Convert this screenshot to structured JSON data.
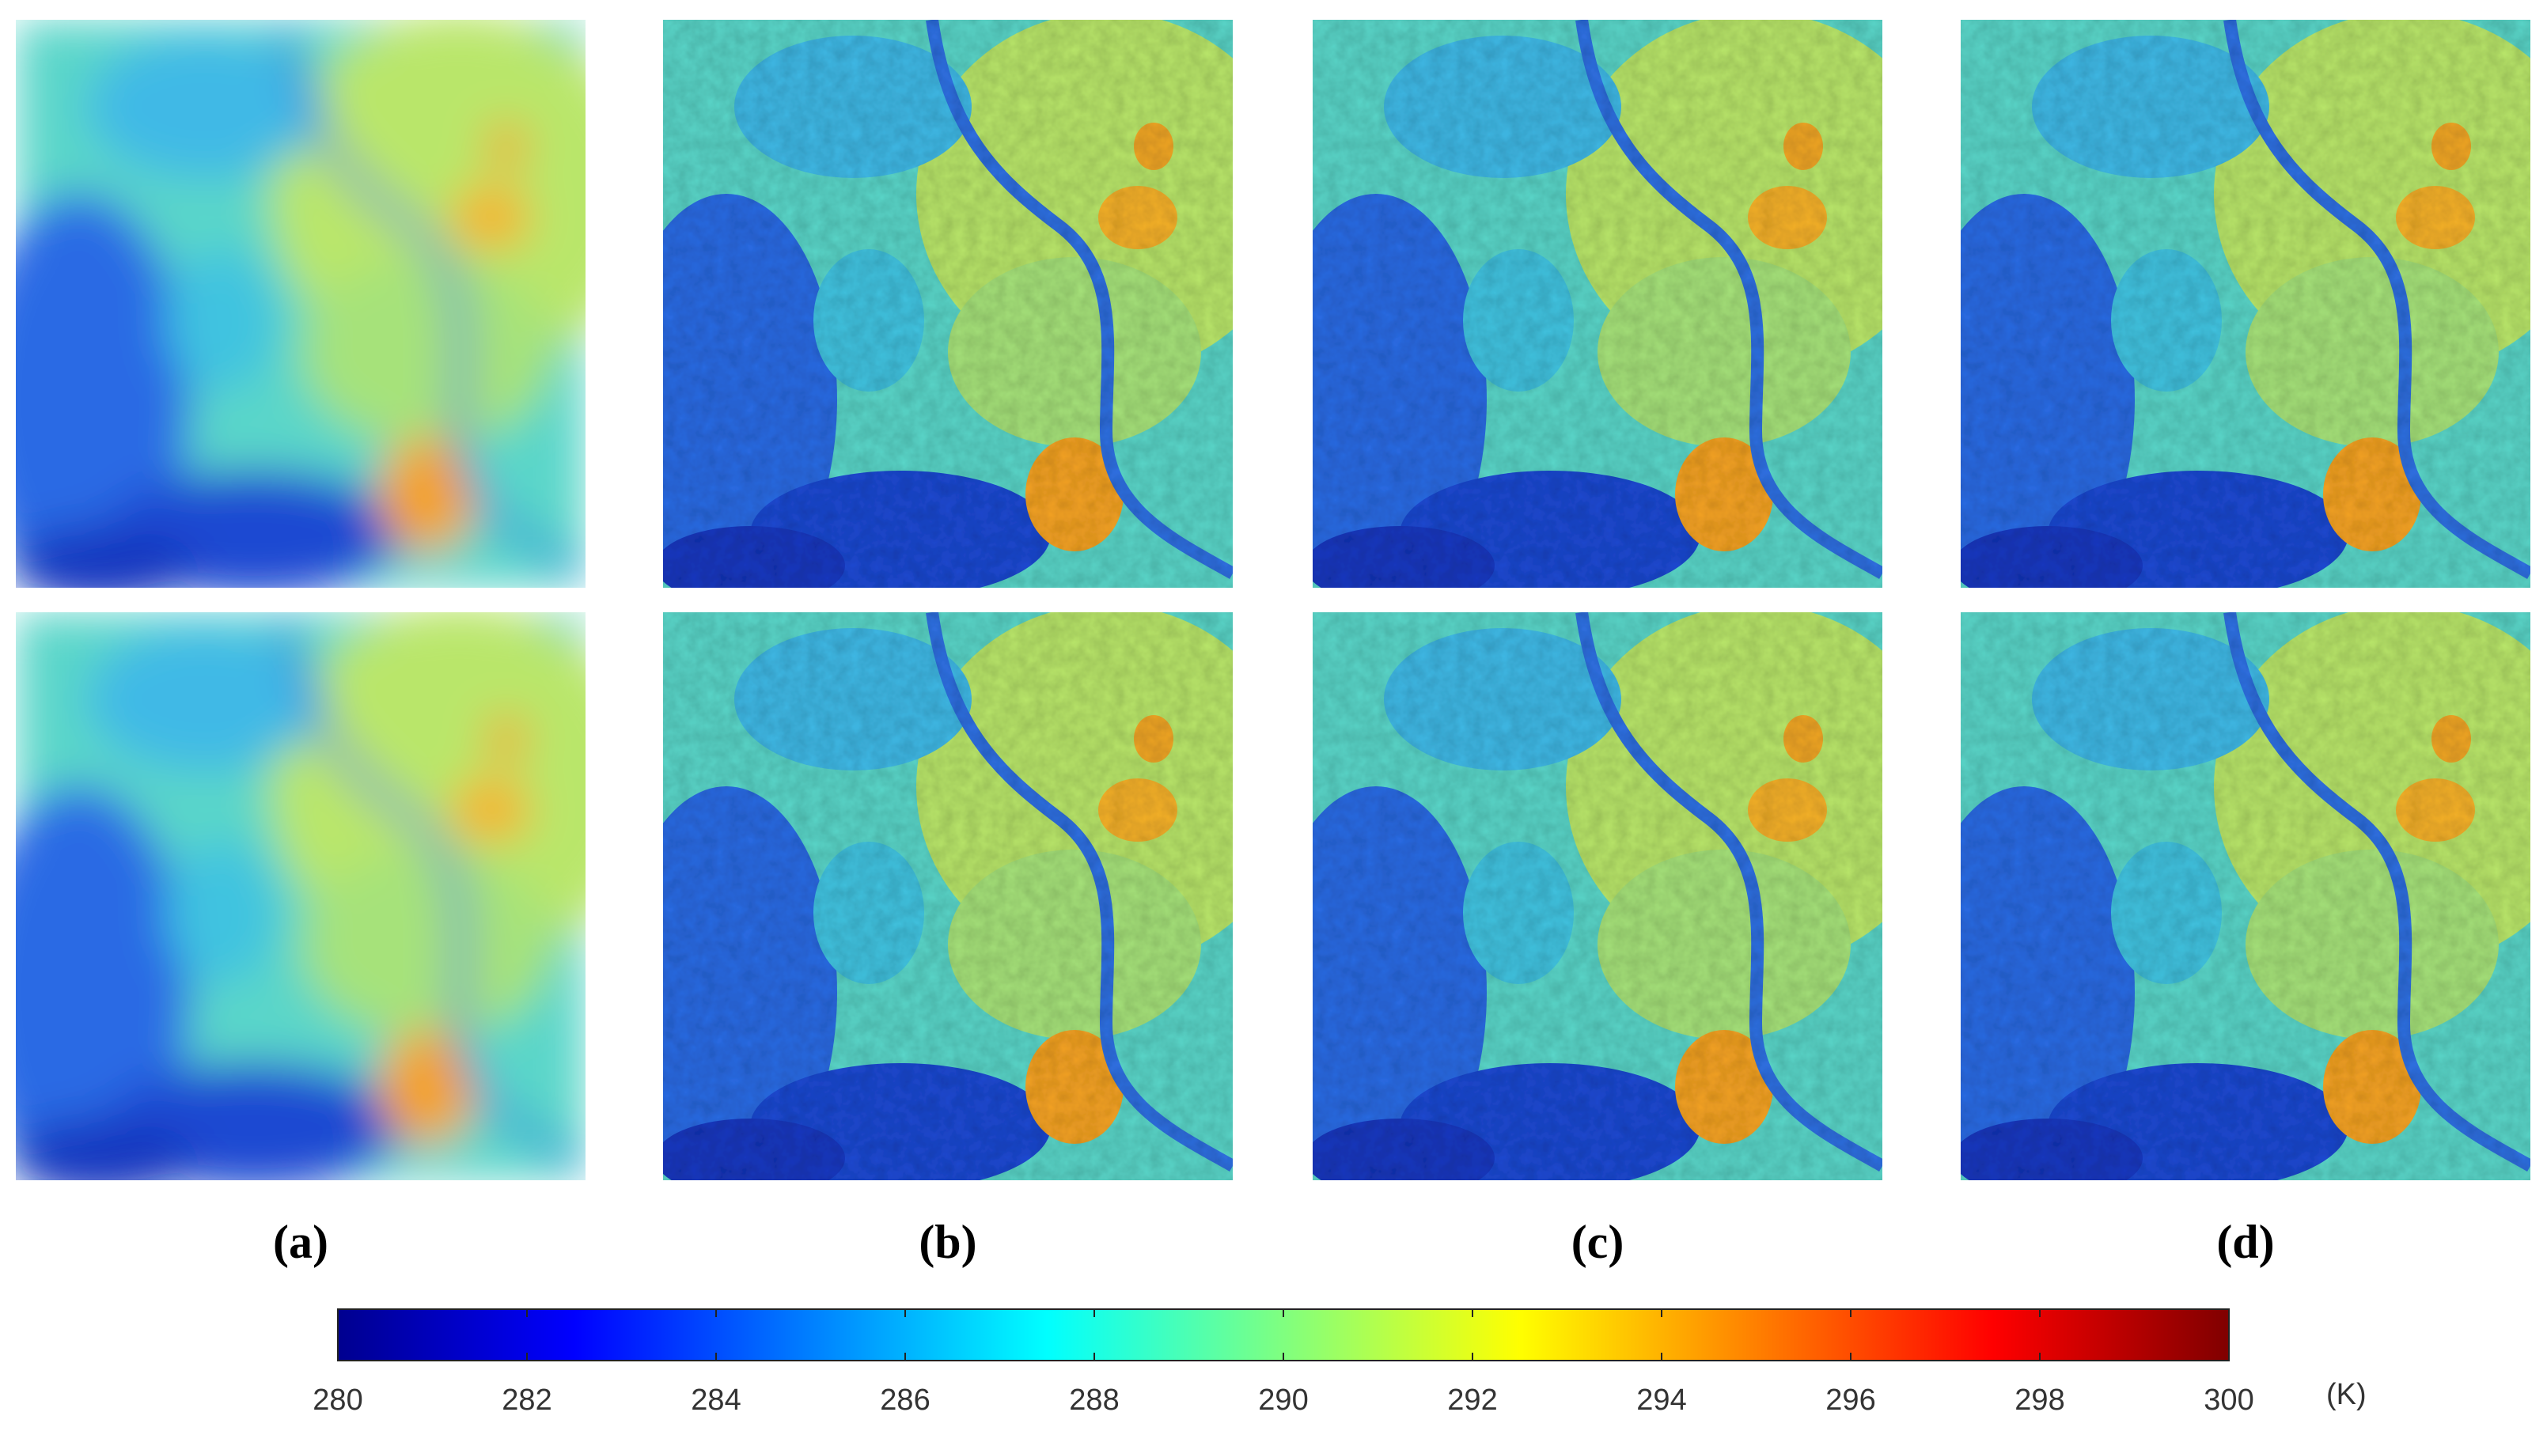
{
  "panels": [
    {
      "label": "(a)"
    },
    {
      "label": "(b)"
    },
    {
      "label": "(c)"
    },
    {
      "label": "(d)"
    }
  ],
  "colorbar": {
    "colormap": "jet",
    "lim": [
      280,
      300
    ],
    "ticks": [
      280,
      282,
      284,
      286,
      288,
      290,
      292,
      294,
      296,
      298,
      300
    ],
    "unit": "(K)"
  }
}
